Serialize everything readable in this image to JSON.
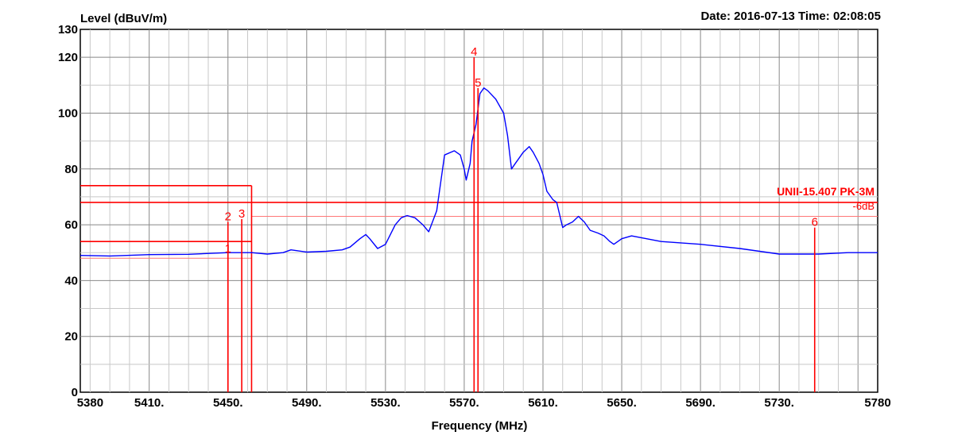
{
  "chart_data": {
    "type": "line",
    "ylabel": "Level (dBuV/m)",
    "xlabel": "Frequency (MHz)",
    "date_text": "Date: 2016-07-13  Time: 02:08:05",
    "xlim": [
      5375,
      5780
    ],
    "ylim": [
      0,
      130
    ],
    "x_ticks": [
      {
        "v": 5380,
        "label": "5380"
      },
      {
        "v": 5410,
        "label": "5410."
      },
      {
        "v": 5450,
        "label": "5450."
      },
      {
        "v": 5490,
        "label": "5490."
      },
      {
        "v": 5530,
        "label": "5530."
      },
      {
        "v": 5570,
        "label": "5570."
      },
      {
        "v": 5610,
        "label": "5610."
      },
      {
        "v": 5650,
        "label": "5650."
      },
      {
        "v": 5690,
        "label": "5690."
      },
      {
        "v": 5730,
        "label": "5730."
      },
      {
        "v": 5780,
        "label": "5780"
      }
    ],
    "y_ticks": [
      {
        "v": 0,
        "label": "0"
      },
      {
        "v": 20,
        "label": "20"
      },
      {
        "v": 40,
        "label": "40"
      },
      {
        "v": 60,
        "label": "60"
      },
      {
        "v": 80,
        "label": "80"
      },
      {
        "v": 100,
        "label": "100"
      },
      {
        "v": 120,
        "label": "120"
      },
      {
        "v": 130,
        "label": "130"
      }
    ],
    "grid": true,
    "series": [
      {
        "color": "#0000ff",
        "x": [
          5375,
          5390,
          5410,
          5430,
          5450,
          5462,
          5470,
          5478,
          5482,
          5490,
          5500,
          5508,
          5512,
          5517,
          5520,
          5522,
          5526,
          5530,
          5535,
          5538,
          5541,
          5545,
          5549,
          5552,
          5556,
          5560,
          5565,
          5568,
          5570,
          5571,
          5573,
          5574,
          5576,
          5578,
          5580,
          5582,
          5586,
          5590,
          5592,
          5594,
          5596,
          5598,
          5600,
          5603,
          5605,
          5608,
          5610,
          5612,
          5615,
          5617,
          5620,
          5622,
          5625,
          5628,
          5631,
          5634,
          5638,
          5641,
          5644,
          5646,
          5648,
          5650,
          5655,
          5670,
          5690,
          5710,
          5730,
          5750,
          5765,
          5780
        ],
        "y": [
          49,
          48.8,
          49.3,
          49.4,
          50,
          50,
          49.5,
          50,
          51,
          50.2,
          50.5,
          51,
          52,
          55,
          56.5,
          55,
          51.5,
          53,
          60,
          62.5,
          63.3,
          62.5,
          60,
          57.5,
          65,
          85,
          86.5,
          85,
          80,
          76,
          82,
          90,
          96,
          107,
          109,
          108,
          105,
          100,
          92,
          80,
          82,
          84,
          86,
          88,
          86,
          82,
          78,
          72,
          69,
          68,
          59,
          60,
          61,
          63,
          61,
          58,
          57,
          56,
          54,
          53,
          54,
          55,
          56,
          54,
          53,
          51.5,
          49.5,
          49.5,
          50,
          50
        ]
      }
    ],
    "lines": [
      {
        "x1": 5375,
        "x2": 5462,
        "y1": 74,
        "y2": 74,
        "color": "#ff0000",
        "thin": false
      },
      {
        "x1": 5375,
        "x2": 5780,
        "y1": 68,
        "y2": 68,
        "color": "#ff0000",
        "thin": false
      },
      {
        "x1": 5462,
        "x2": 5780,
        "y1": 63,
        "y2": 63,
        "color": "#ff7777",
        "thin": true
      },
      {
        "x1": 5375,
        "x2": 5462,
        "y1": 54,
        "y2": 54,
        "color": "#ff0000",
        "thin": false
      },
      {
        "x1": 5375,
        "x2": 5462,
        "y1": 48,
        "y2": 48,
        "color": "#ff7777",
        "thin": true
      },
      {
        "x1": 5462,
        "x2": 5462,
        "y1": 0,
        "y2": 74,
        "color": "#ff0000",
        "thin": false
      }
    ],
    "markers": [
      {
        "label": "1",
        "x": 5450,
        "y": 49.5
      },
      {
        "label": "2",
        "x": 5450,
        "y": 61
      },
      {
        "label": "3",
        "x": 5457,
        "y": 62
      },
      {
        "label": "4",
        "x": 5575,
        "y": 120
      },
      {
        "label": "5",
        "x": 5577,
        "y": 109
      },
      {
        "label": "6",
        "x": 5748,
        "y": 59
      }
    ],
    "limit_text": "UNII-15.407 PK-3M",
    "limit_text2": "-6dB"
  }
}
